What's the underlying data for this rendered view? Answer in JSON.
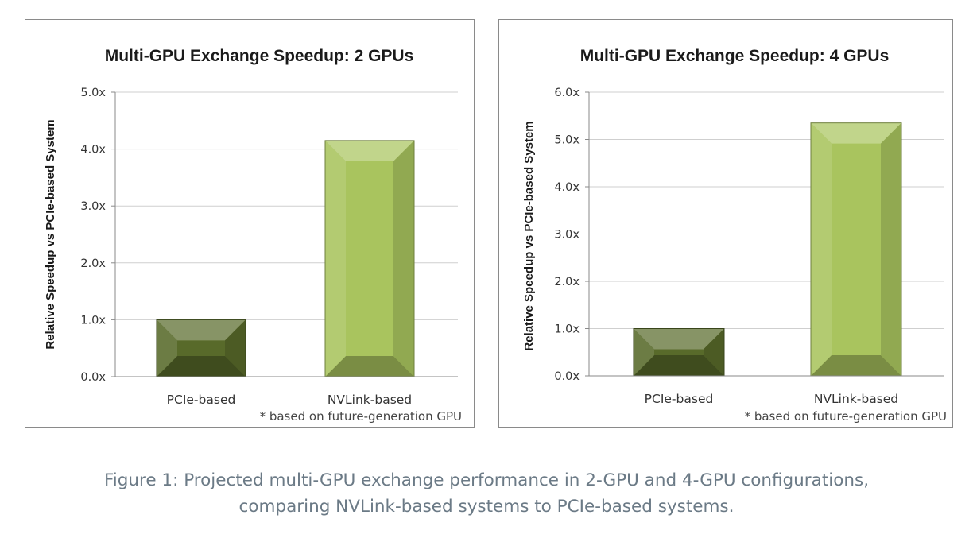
{
  "chart_data": [
    {
      "type": "bar",
      "title": "Multi-GPU Exchange Speedup: 2 GPUs",
      "xlabel": "",
      "ylabel": "Relative Speedup vs PCIe-based System",
      "categories": [
        "PCIe-based",
        "NVLink-based"
      ],
      "values": [
        1.0,
        4.15
      ],
      "ylim": [
        0,
        5
      ],
      "yticks": [
        "0.0x",
        "1.0x",
        "2.0x",
        "3.0x",
        "4.0x",
        "5.0x"
      ],
      "grid": true,
      "footnote": "* based on future-generation GPU",
      "colors": [
        "#586a2a",
        "#a9c45e"
      ]
    },
    {
      "type": "bar",
      "title": "Multi-GPU Exchange Speedup: 4 GPUs",
      "xlabel": "",
      "ylabel": "Relative Speedup vs PCIe-based System",
      "categories": [
        "PCIe-based",
        "NVLink-based"
      ],
      "values": [
        1.0,
        5.35
      ],
      "ylim": [
        0,
        6
      ],
      "yticks": [
        "0.0x",
        "1.0x",
        "2.0x",
        "3.0x",
        "4.0x",
        "5.0x",
        "6.0x"
      ],
      "grid": true,
      "footnote": "* based on future-generation GPU",
      "colors": [
        "#586a2a",
        "#a9c45e"
      ]
    }
  ],
  "caption": {
    "line1": "Figure 1: Projected multi-GPU exchange performance in 2-GPU and 4-GPU configurations,",
    "line2": "comparing NVLink-based systems to PCIe-based systems."
  }
}
